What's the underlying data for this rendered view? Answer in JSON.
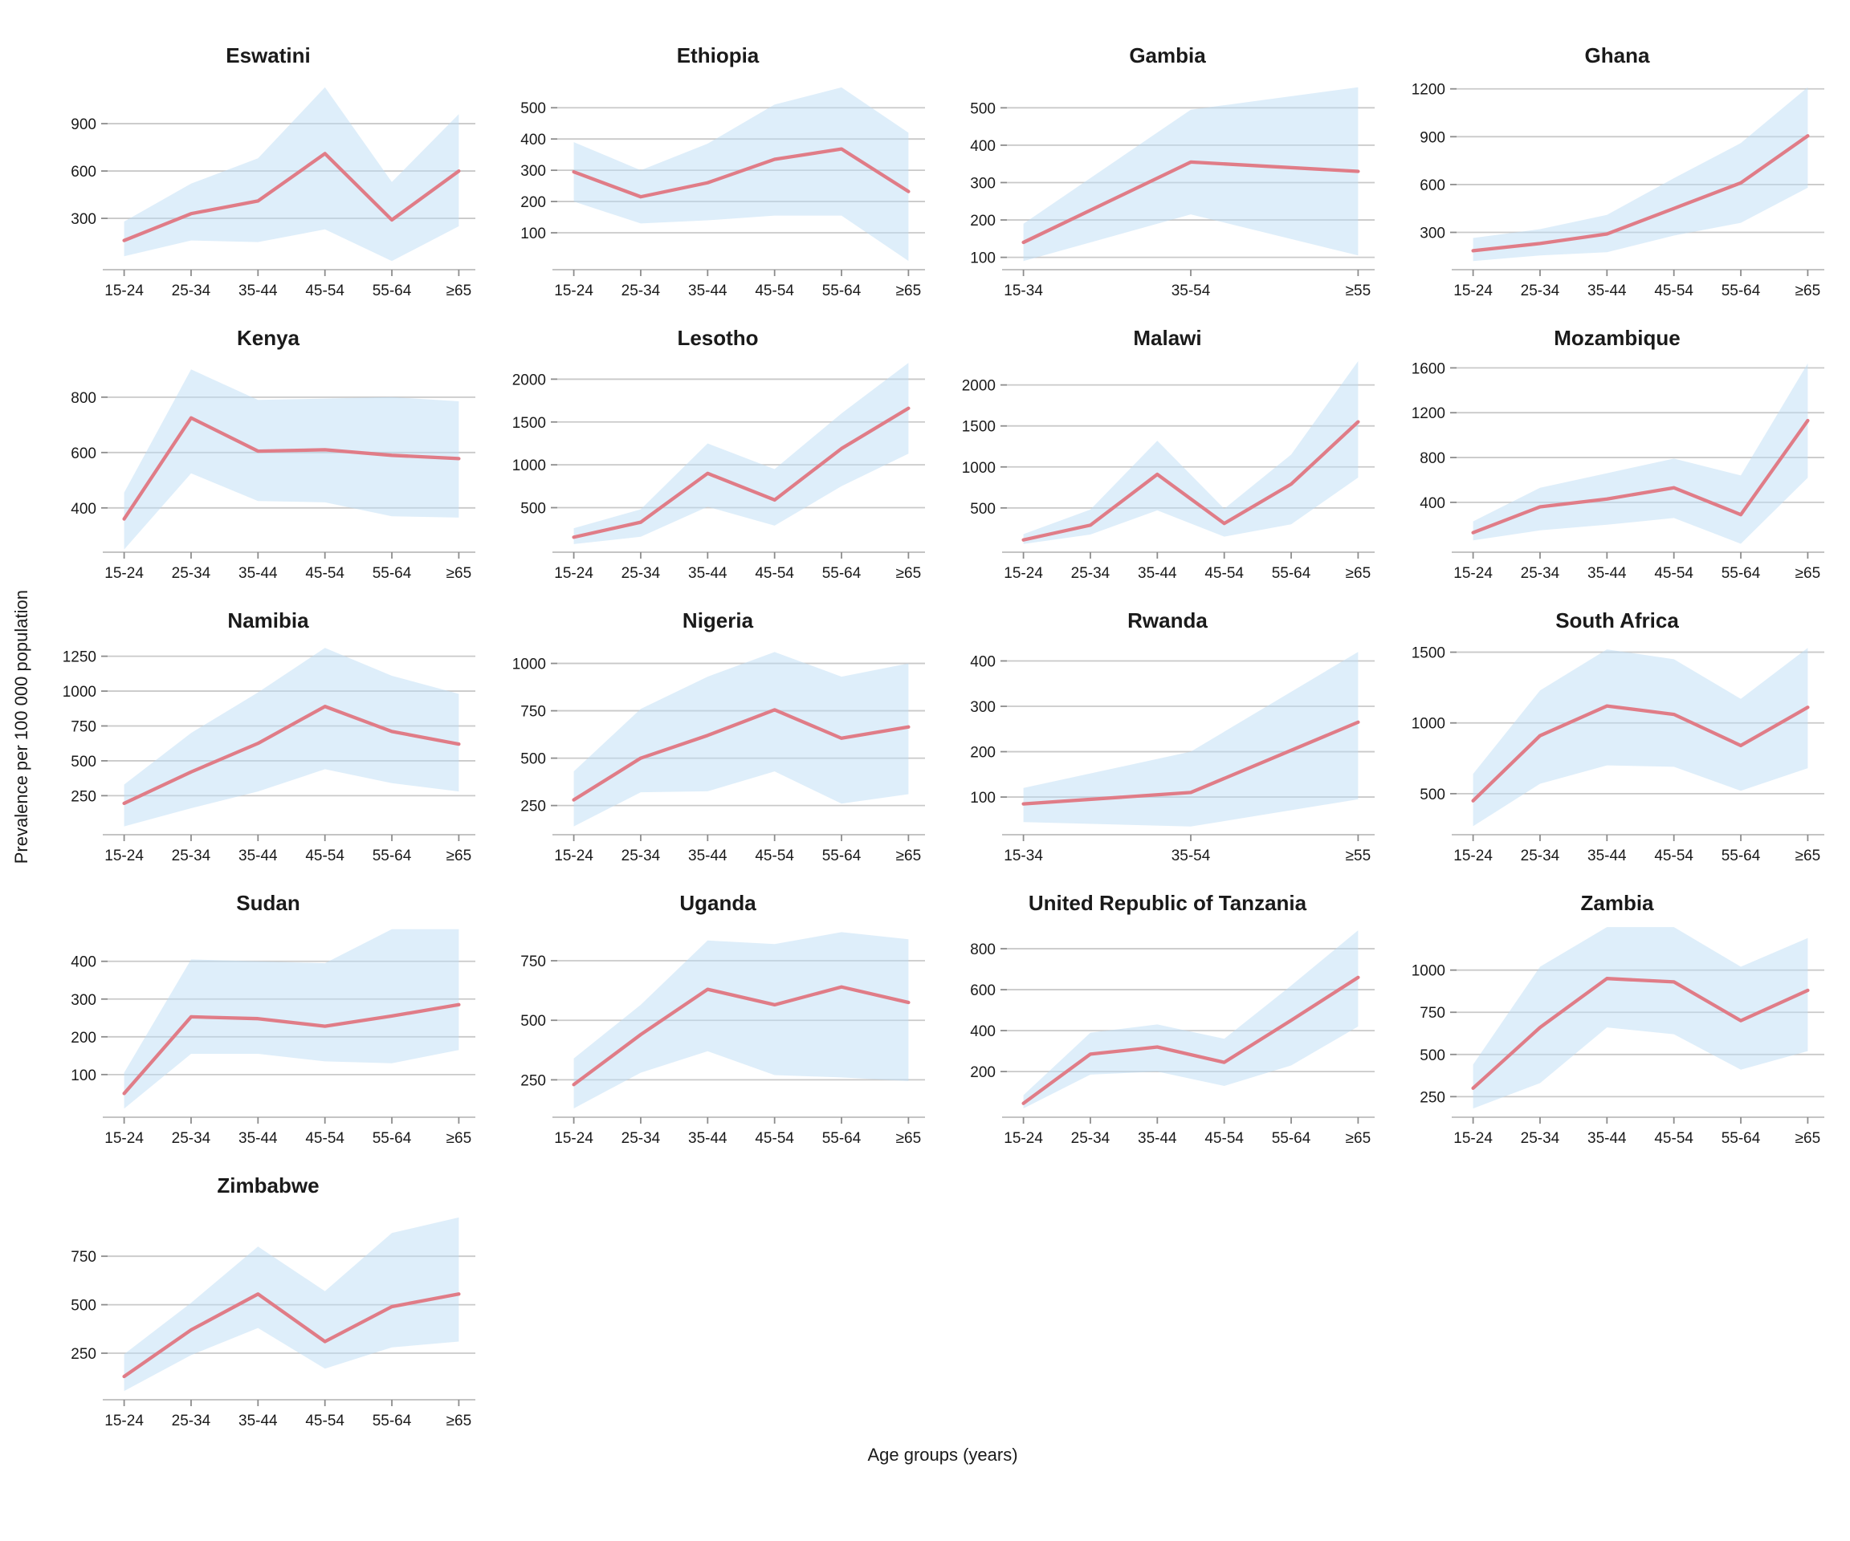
{
  "figure": {
    "ylabel": "Prevalence per 100 000 population",
    "xlabel": "Age groups (years)",
    "colors": {
      "line": "#E07C87",
      "band": "rgba(190,222,246,0.5)",
      "grid": "#C9C9C9",
      "axis_line": "#C4C4C4",
      "tick": "#8C8C8C",
      "text": "#1a1a1a"
    }
  },
  "chart_data": [
    {
      "type": "line",
      "title": "Eswatini",
      "categories": [
        "15-24",
        "25-34",
        "35-44",
        "45-54",
        "55-64",
        "≥65"
      ],
      "values": [
        160,
        330,
        410,
        710,
        290,
        600
      ],
      "band_lower": [
        60,
        160,
        150,
        230,
        30,
        250
      ],
      "band_upper": [
        280,
        520,
        680,
        1130,
        530,
        960
      ],
      "yticks": [
        300,
        600,
        900
      ],
      "ylim": [
        -25,
        1185
      ]
    },
    {
      "type": "line",
      "title": "Ethiopia",
      "categories": [
        "15-24",
        "25-34",
        "35-44",
        "45-54",
        "55-64",
        "≥65"
      ],
      "values": [
        295,
        215,
        260,
        335,
        368,
        232
      ],
      "band_lower": [
        200,
        130,
        140,
        155,
        155,
        10
      ],
      "band_upper": [
        390,
        300,
        385,
        510,
        565,
        420
      ],
      "yticks": [
        100,
        200,
        300,
        400,
        500
      ],
      "ylim": [
        -18,
        593
      ]
    },
    {
      "type": "line",
      "title": "Gambia",
      "categories": [
        "15-34",
        "35-54",
        "≥55"
      ],
      "values": [
        140,
        355,
        330
      ],
      "band_lower": [
        90,
        215,
        105
      ],
      "band_upper": [
        190,
        495,
        555
      ],
      "yticks": [
        100,
        200,
        300,
        400,
        500
      ],
      "ylim": [
        67,
        578
      ]
    },
    {
      "type": "line",
      "title": "Ghana",
      "categories": [
        "15-24",
        "25-34",
        "35-44",
        "45-54",
        "55-64",
        "≥65"
      ],
      "values": [
        185,
        230,
        290,
        450,
        610,
        905
      ],
      "band_lower": [
        120,
        155,
        175,
        280,
        360,
        580
      ],
      "band_upper": [
        265,
        320,
        410,
        640,
        860,
        1210
      ],
      "yticks": [
        300,
        600,
        900,
        1200
      ],
      "ylim": [
        66,
        1264
      ]
    },
    {
      "type": "line",
      "title": "Kenya",
      "categories": [
        "15-24",
        "25-34",
        "35-44",
        "45-54",
        "55-64",
        "≥65"
      ],
      "values": [
        360,
        725,
        605,
        610,
        590,
        578
      ],
      "band_lower": [
        250,
        525,
        425,
        420,
        370,
        365
      ],
      "band_upper": [
        455,
        900,
        790,
        795,
        800,
        785
      ],
      "yticks": [
        400,
        600,
        800
      ],
      "ylim": [
        240,
        930
      ]
    },
    {
      "type": "line",
      "title": "Lesotho",
      "categories": [
        "15-24",
        "25-34",
        "35-44",
        "45-54",
        "55-64",
        "≥65"
      ],
      "values": [
        155,
        330,
        900,
        590,
        1190,
        1660
      ],
      "band_lower": [
        75,
        160,
        510,
        290,
        750,
        1130
      ],
      "band_upper": [
        260,
        480,
        1250,
        950,
        1600,
        2190
      ],
      "yticks": [
        500,
        1000,
        1500,
        2000
      ],
      "ylim": [
        -20,
        2210
      ]
    },
    {
      "type": "line",
      "title": "Malawi",
      "categories": [
        "15-24",
        "25-34",
        "35-44",
        "45-54",
        "55-64",
        "≥65"
      ],
      "values": [
        110,
        290,
        910,
        310,
        790,
        1550
      ],
      "band_lower": [
        60,
        175,
        470,
        150,
        300,
        870
      ],
      "band_upper": [
        180,
        480,
        1320,
        490,
        1150,
        2290
      ],
      "yticks": [
        500,
        1000,
        1500,
        2000
      ],
      "ylim": [
        -40,
        2290
      ]
    },
    {
      "type": "line",
      "title": "Mozambique",
      "categories": [
        "15-24",
        "25-34",
        "35-44",
        "45-54",
        "55-64",
        "≥65"
      ],
      "values": [
        130,
        360,
        430,
        530,
        290,
        1130
      ],
      "band_lower": [
        60,
        150,
        200,
        260,
        30,
        620
      ],
      "band_upper": [
        230,
        530,
        660,
        790,
        640,
        1640
      ],
      "yticks": [
        400,
        800,
        1200,
        1600
      ],
      "ylim": [
        -45,
        1660
      ]
    },
    {
      "type": "line",
      "title": "Namibia",
      "categories": [
        "15-24",
        "25-34",
        "35-44",
        "45-54",
        "55-64",
        "≥65"
      ],
      "values": [
        195,
        420,
        625,
        890,
        710,
        620
      ],
      "band_lower": [
        30,
        160,
        280,
        440,
        340,
        280
      ],
      "band_upper": [
        330,
        700,
        990,
        1310,
        1110,
        980
      ],
      "yticks": [
        250,
        500,
        750,
        1000,
        1250
      ],
      "ylim": [
        -30,
        1340
      ]
    },
    {
      "type": "line",
      "title": "Nigeria",
      "categories": [
        "15-24",
        "25-34",
        "35-44",
        "45-54",
        "55-64",
        "≥65"
      ],
      "values": [
        280,
        500,
        620,
        755,
        605,
        665
      ],
      "band_lower": [
        140,
        320,
        325,
        430,
        260,
        310
      ],
      "band_upper": [
        430,
        760,
        930,
        1060,
        930,
        1000
      ],
      "yticks": [
        250,
        500,
        750,
        1000
      ],
      "ylim": [
        96,
        1104
      ]
    },
    {
      "type": "line",
      "title": "Rwanda",
      "categories": [
        "15-34",
        "35-54",
        "≥55"
      ],
      "values": [
        85,
        110,
        265
      ],
      "band_lower": [
        45,
        35,
        95
      ],
      "band_upper": [
        120,
        200,
        420
      ],
      "yticks": [
        100,
        200,
        300,
        400
      ],
      "ylim": [
        17,
        438
      ]
    },
    {
      "type": "line",
      "title": "South Africa",
      "categories": [
        "15-24",
        "25-34",
        "35-44",
        "45-54",
        "55-64",
        "≥65"
      ],
      "values": [
        450,
        910,
        1120,
        1060,
        840,
        1110
      ],
      "band_lower": [
        270,
        570,
        700,
        690,
        520,
        680
      ],
      "band_upper": [
        640,
        1230,
        1520,
        1450,
        1170,
        1530
      ],
      "yticks": [
        500,
        1000,
        1500
      ],
      "ylim": [
        210,
        1560
      ]
    },
    {
      "type": "line",
      "title": "Sudan",
      "categories": [
        "15-24",
        "25-34",
        "35-44",
        "45-54",
        "55-64",
        "≥65"
      ],
      "values": [
        50,
        253,
        248,
        228,
        255,
        285
      ],
      "band_lower": [
        10,
        155,
        155,
        135,
        130,
        165
      ],
      "band_upper": [
        105,
        405,
        400,
        395,
        485,
        485
      ],
      "yticks": [
        100,
        200,
        300,
        400
      ],
      "ylim": [
        -13,
        493
      ]
    },
    {
      "type": "line",
      "title": "Uganda",
      "categories": [
        "15-24",
        "25-34",
        "35-44",
        "45-54",
        "55-64",
        "≥65"
      ],
      "values": [
        230,
        440,
        630,
        565,
        640,
        575
      ],
      "band_lower": [
        130,
        280,
        370,
        270,
        260,
        245
      ],
      "band_upper": [
        340,
        565,
        835,
        820,
        870,
        840
      ],
      "yticks": [
        250,
        500,
        750
      ],
      "ylim": [
        93,
        895
      ]
    },
    {
      "type": "line",
      "title": "United Republic of Tanzania",
      "categories": [
        "15-24",
        "25-34",
        "35-44",
        "45-54",
        "55-64",
        "≥65"
      ],
      "values": [
        45,
        285,
        320,
        245,
        450,
        660
      ],
      "band_lower": [
        20,
        185,
        200,
        130,
        230,
        420
      ],
      "band_upper": [
        85,
        390,
        430,
        360,
        620,
        890
      ],
      "yticks": [
        200,
        400,
        600,
        800
      ],
      "ylim": [
        -23,
        910
      ]
    },
    {
      "type": "line",
      "title": "Zambia",
      "categories": [
        "15-24",
        "25-34",
        "35-44",
        "45-54",
        "55-64",
        "≥65"
      ],
      "values": [
        300,
        660,
        950,
        930,
        700,
        880
      ],
      "band_lower": [
        180,
        330,
        660,
        620,
        410,
        520
      ],
      "band_upper": [
        440,
        1020,
        1255,
        1255,
        1020,
        1190
      ],
      "yticks": [
        250,
        500,
        750,
        1000
      ],
      "ylim": [
        128,
        1260
      ]
    },
    {
      "type": "line",
      "title": "Zimbabwe",
      "categories": [
        "15-24",
        "25-34",
        "35-44",
        "45-54",
        "55-64",
        "≥65"
      ],
      "values": [
        130,
        370,
        555,
        310,
        490,
        555
      ],
      "band_lower": [
        55,
        240,
        380,
        170,
        280,
        310
      ],
      "band_upper": [
        245,
        510,
        800,
        570,
        870,
        950
      ],
      "yticks": [
        250,
        500,
        750
      ],
      "ylim": [
        10,
        995
      ]
    }
  ]
}
